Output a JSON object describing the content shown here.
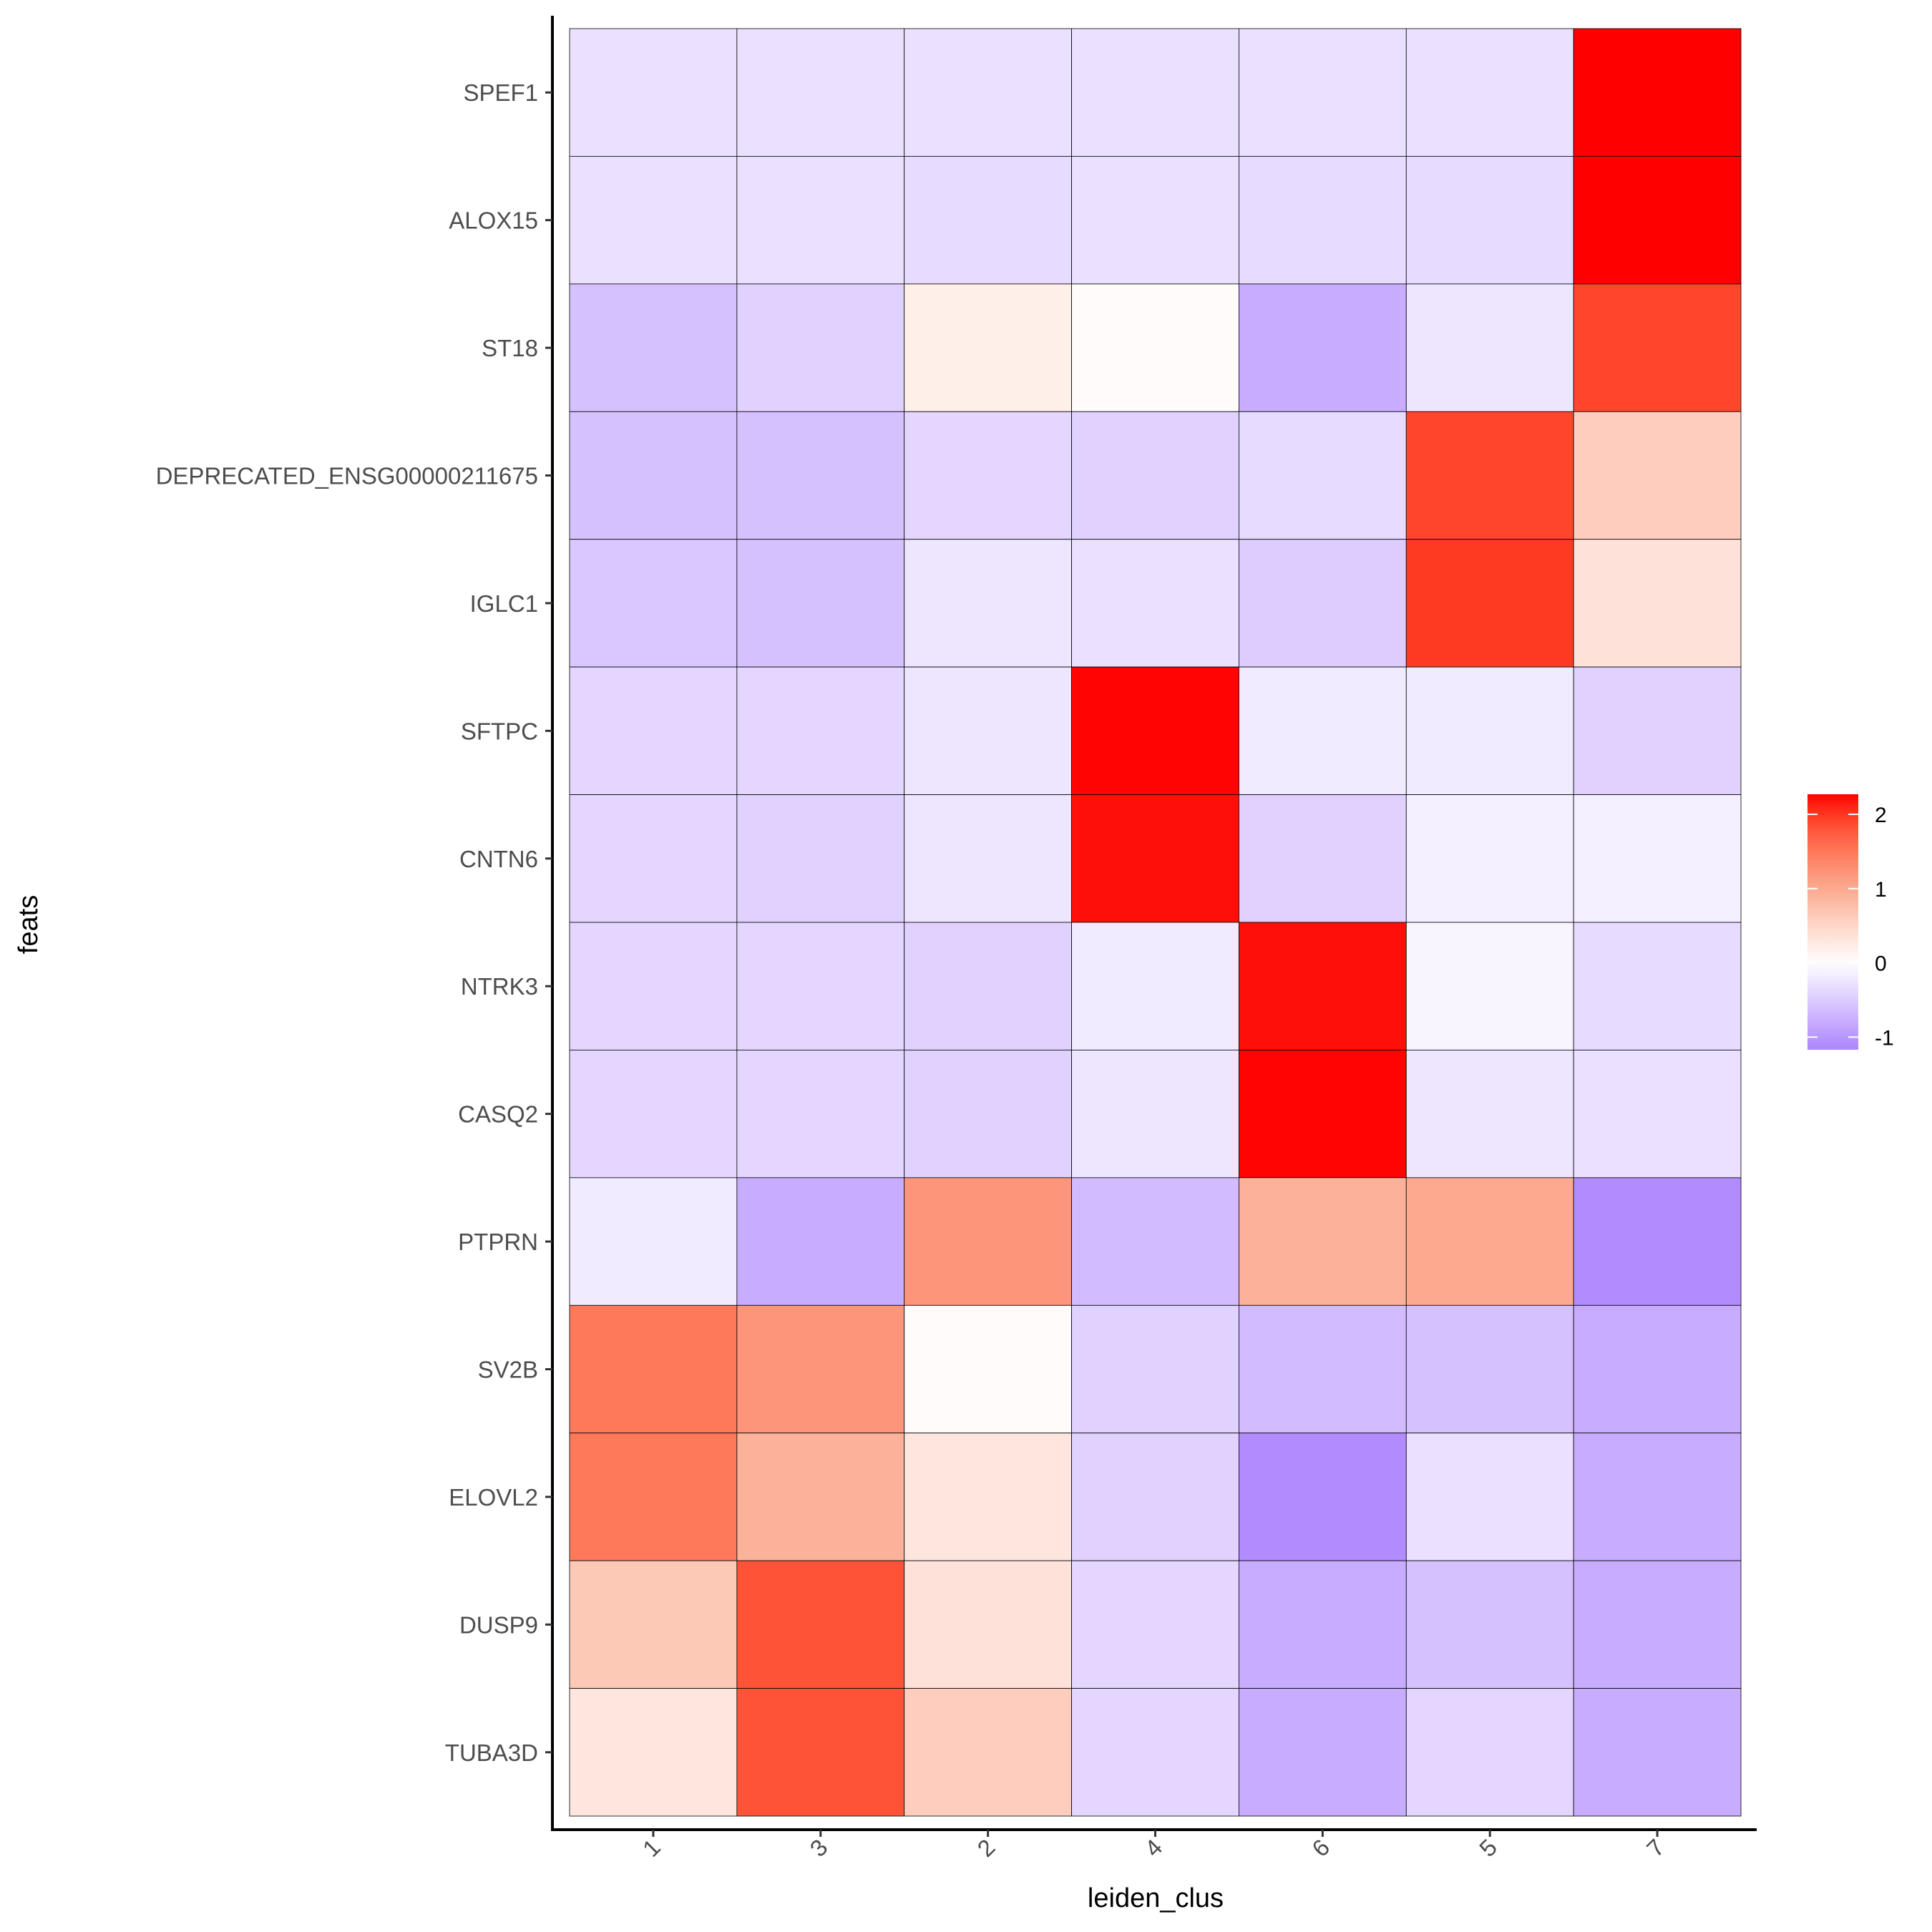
{
  "chart_data": {
    "type": "heatmap",
    "title": "",
    "xlabel": "leiden_clus",
    "ylabel": "feats",
    "x_categories": [
      "1",
      "3",
      "2",
      "4",
      "6",
      "5",
      "7"
    ],
    "y_categories": [
      "SPEF1",
      "ALOX15",
      "ST18",
      "DEPRECATED_ENSG00000211675",
      "IGLC1",
      "SFTPC",
      "CNTN6",
      "NTRK3",
      "CASQ2",
      "PTPRN",
      "SV2B",
      "ELOVL2",
      "DUSP9",
      "TUBA3D"
    ],
    "values": [
      [
        -0.3,
        -0.3,
        -0.3,
        -0.3,
        -0.3,
        -0.3,
        2.27
      ],
      [
        -0.3,
        -0.3,
        -0.35,
        -0.3,
        -0.35,
        -0.35,
        2.27
      ],
      [
        -0.6,
        -0.45,
        0.2,
        0.05,
        -0.8,
        -0.25,
        1.9
      ],
      [
        -0.6,
        -0.6,
        -0.4,
        -0.45,
        -0.35,
        1.9,
        0.6
      ],
      [
        -0.55,
        -0.6,
        -0.25,
        -0.3,
        -0.5,
        2.0,
        0.35
      ],
      [
        -0.4,
        -0.4,
        -0.25,
        2.25,
        -0.2,
        -0.2,
        -0.45
      ],
      [
        -0.4,
        -0.45,
        -0.25,
        2.2,
        -0.45,
        -0.15,
        -0.15
      ],
      [
        -0.4,
        -0.4,
        -0.45,
        -0.2,
        2.2,
        -0.1,
        -0.35
      ],
      [
        -0.4,
        -0.4,
        -0.45,
        -0.25,
        2.25,
        -0.25,
        -0.3
      ],
      [
        -0.2,
        -0.8,
        1.2,
        -0.65,
        0.9,
        1.0,
        -1.1
      ],
      [
        1.5,
        1.2,
        0.05,
        -0.45,
        -0.65,
        -0.6,
        -0.8
      ],
      [
        1.5,
        0.9,
        0.3,
        -0.45,
        -1.1,
        -0.3,
        -0.8
      ],
      [
        0.65,
        1.8,
        0.35,
        -0.4,
        -0.8,
        -0.6,
        -0.8
      ],
      [
        0.3,
        1.8,
        0.6,
        -0.4,
        -0.8,
        -0.4,
        -0.8
      ]
    ],
    "color_scale": {
      "range": [
        -1.17,
        2.27
      ],
      "low": "#ad85ff",
      "mid": "#ffffff",
      "high": "#ff0000",
      "midpoint": 0
    },
    "legend": {
      "position": "right",
      "ticks": [
        "2",
        "1",
        "0",
        "-1"
      ],
      "tick_values": [
        2,
        1,
        0,
        -1
      ]
    },
    "grid": false
  }
}
